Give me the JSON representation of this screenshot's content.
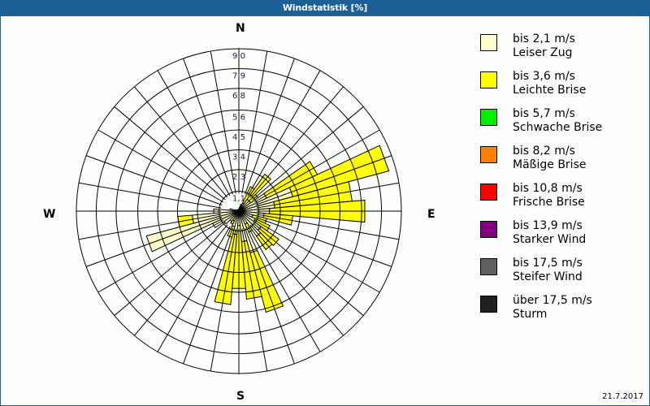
{
  "window": {
    "title": "Windstatistik [%]"
  },
  "directions": {
    "north": "N",
    "east": "E",
    "south": "S",
    "west": "W"
  },
  "date": "21.7.2017",
  "legend": [
    {
      "range": "bis 2,1 m/s",
      "name": "Leiser Zug",
      "color": "#ffffcc"
    },
    {
      "range": "bis 3,6 m/s",
      "name": "Leichte Brise",
      "color": "#ffff00"
    },
    {
      "range": "bis 5,7 m/s",
      "name": "Schwache Brise",
      "color": "#00ee00"
    },
    {
      "range": "bis 8,2 m/s",
      "name": "Mäßige Brise",
      "color": "#ff8000"
    },
    {
      "range": "bis 10,8 m/s",
      "name": "Frische Brise",
      "color": "#ff0000"
    },
    {
      "range": "bis 13,9 m/s",
      "name": "Starker Wind",
      "color": "#800080"
    },
    {
      "range": "bis 17,5 m/s",
      "name": "Steifer Wind",
      "color": "#606060"
    },
    {
      "range": "über 17,5 m/s",
      "name": "Sturm",
      "color": "#202020"
    }
  ],
  "chart_data": {
    "type": "windrose",
    "title": "Windstatistik [%]",
    "unit": "%",
    "ring_labels": [
      "1,1",
      "2,3",
      "3,4",
      "4,5",
      "5,6",
      "6,8",
      "7,9",
      "9,0"
    ],
    "ring_values": [
      1.1,
      2.3,
      3.4,
      4.5,
      5.6,
      6.8,
      7.9,
      9.0
    ],
    "rmax": 9.0,
    "sector_width_deg": 10,
    "series_names": [
      "bis 2,1 m/s (Leiser Zug)",
      "bis 3,6 m/s (Leichte Brise)"
    ],
    "series_colors": [
      "#ffffcc",
      "#ffff00"
    ],
    "sectors": [
      {
        "dir": 0,
        "values": [
          0.1,
          0.0
        ]
      },
      {
        "dir": 10,
        "values": [
          0.2,
          0.0
        ]
      },
      {
        "dir": 20,
        "values": [
          0.3,
          0.1
        ]
      },
      {
        "dir": 30,
        "values": [
          0.5,
          1.0
        ]
      },
      {
        "dir": 40,
        "values": [
          0.8,
          1.7
        ]
      },
      {
        "dir": 50,
        "values": [
          0.8,
          0.5
        ]
      },
      {
        "dir": 60,
        "values": [
          1.7,
          3.1
        ]
      },
      {
        "dir": 70,
        "values": [
          3.1,
          5.5
        ]
      },
      {
        "dir": 80,
        "values": [
          2.0,
          4.3
        ]
      },
      {
        "dir": 90,
        "values": [
          1.7,
          5.3
        ]
      },
      {
        "dir": 100,
        "values": [
          1.4,
          1.6
        ]
      },
      {
        "dir": 110,
        "values": [
          0.8,
          0.8
        ]
      },
      {
        "dir": 120,
        "values": [
          1.0,
          0.9
        ]
      },
      {
        "dir": 130,
        "values": [
          1.5,
          1.2
        ]
      },
      {
        "dir": 140,
        "values": [
          1.7,
          0.9
        ]
      },
      {
        "dir": 150,
        "values": [
          0.8,
          0.5
        ]
      },
      {
        "dir": 160,
        "values": [
          2.4,
          3.4
        ]
      },
      {
        "dir": 170,
        "values": [
          1.7,
          3.2
        ]
      },
      {
        "dir": 180,
        "values": [
          0.8,
          3.5
        ]
      },
      {
        "dir": 190,
        "values": [
          1.3,
          3.9
        ]
      },
      {
        "dir": 200,
        "values": [
          0.9,
          0.6
        ]
      },
      {
        "dir": 210,
        "values": [
          0.6,
          0.2
        ]
      },
      {
        "dir": 220,
        "values": [
          0.7,
          0.0
        ]
      },
      {
        "dir": 230,
        "values": [
          1.0,
          0.0
        ]
      },
      {
        "dir": 240,
        "values": [
          1.6,
          0.0
        ]
      },
      {
        "dir": 250,
        "values": [
          5.3,
          0.0
        ]
      },
      {
        "dir": 260,
        "values": [
          2.6,
          0.8
        ]
      },
      {
        "dir": 270,
        "values": [
          1.4,
          0.0
        ]
      },
      {
        "dir": 280,
        "values": [
          0.5,
          0.0
        ]
      },
      {
        "dir": 290,
        "values": [
          0.2,
          0.0
        ]
      },
      {
        "dir": 300,
        "values": [
          0.1,
          0.0
        ]
      },
      {
        "dir": 310,
        "values": [
          0.1,
          0.0
        ]
      },
      {
        "dir": 320,
        "values": [
          0.1,
          0.0
        ]
      },
      {
        "dir": 330,
        "values": [
          0.1,
          0.0
        ]
      },
      {
        "dir": 340,
        "values": [
          0.1,
          0.0
        ]
      },
      {
        "dir": 350,
        "values": [
          0.1,
          0.0
        ]
      }
    ]
  }
}
